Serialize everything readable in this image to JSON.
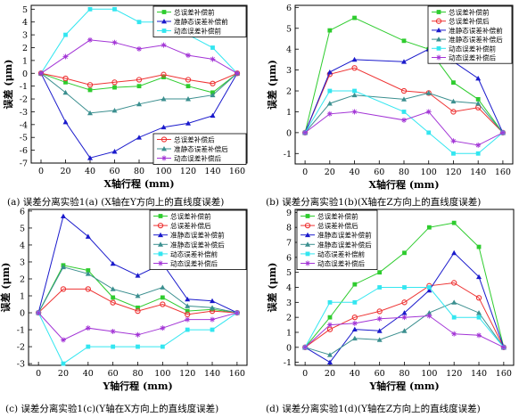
{
  "figure": {
    "captions": [
      "(a) 误差分离实验1(a) (X轴在Y方向上的直线度误差)",
      "(b) 误差分离实验1(b)(X轴在Z方向上的直线度误差)",
      "(c) 误差分离实验1(c)(Y轴在X方向上的直线度误差)",
      "(d) 误差分离实验1(d)(Y轴在Z方向上的直线度误差)"
    ]
  },
  "chart_data": [
    {
      "type": "line",
      "xlabel": "X轴行程 (mm)",
      "ylabel": "误差 (μm)",
      "xlim": [
        -8,
        168
      ],
      "ylim": [
        -7,
        5.3
      ],
      "xticks": [
        0,
        20,
        40,
        60,
        80,
        100,
        120,
        140,
        160
      ],
      "yticks": [
        -7,
        -6,
        -5,
        -4,
        -3,
        -2,
        -1,
        0,
        1,
        2,
        3,
        4,
        5
      ],
      "x": [
        0,
        20,
        40,
        60,
        80,
        100,
        120,
        140,
        160
      ],
      "series": [
        {
          "name": "总误差补偿前",
          "color": "#2ecc2e",
          "marker": "square",
          "values": [
            0,
            -0.7,
            -1.3,
            -1.1,
            -1.0,
            -0.3,
            -1.0,
            -1.5,
            0
          ]
        },
        {
          "name": "准静态误差补偿前",
          "color": "#1a1acc",
          "marker": "triangle",
          "values": [
            0,
            -3.8,
            -6.6,
            -6.1,
            -5.0,
            -4.2,
            -3.9,
            -3.3,
            0
          ]
        },
        {
          "name": "动态误差补偿前",
          "color": "#33e6f0",
          "marker": "square",
          "values": [
            0,
            3.0,
            5.0,
            5.0,
            4.0,
            4.0,
            3.0,
            2.0,
            0
          ]
        },
        {
          "name": "总误差补偿后",
          "color": "#ee3333",
          "marker": "circle",
          "values": [
            0,
            -0.4,
            -0.9,
            -0.7,
            -0.5,
            -0.1,
            -0.5,
            -0.8,
            0
          ]
        },
        {
          "name": "准静态误差补偿后",
          "color": "#3b8f8f",
          "marker": "triangle",
          "values": [
            0,
            -1.5,
            -3.1,
            -2.9,
            -2.4,
            -2.0,
            -2.0,
            -1.7,
            0
          ]
        },
        {
          "name": "动态误差补偿后",
          "color": "#a335d6",
          "marker": "star",
          "values": [
            0,
            1.3,
            2.6,
            2.4,
            1.9,
            2.2,
            1.4,
            1.1,
            0
          ]
        }
      ]
    },
    {
      "type": "line",
      "xlabel": "X轴行程 (mm)",
      "ylabel": "误差 (μm)",
      "xlim": [
        -8,
        168
      ],
      "ylim": [
        -1.5,
        6.1
      ],
      "xticks": [
        0,
        20,
        40,
        60,
        80,
        100,
        120,
        140,
        160
      ],
      "yticks": [
        -1,
        0,
        1,
        2,
        3,
        4,
        5,
        6
      ],
      "x": [
        0,
        20,
        40,
        80,
        100,
        120,
        140,
        160
      ],
      "series": [
        {
          "name": "总误差补偿前",
          "color": "#2ecc2e",
          "marker": "square",
          "values": [
            0,
            4.9,
            5.5,
            4.4,
            4.0,
            2.4,
            1.6,
            0
          ]
        },
        {
          "name": "总误差补偿后",
          "color": "#ee3333",
          "marker": "circle",
          "values": [
            0,
            2.8,
            3.1,
            2.0,
            1.9,
            1.0,
            1.2,
            0
          ]
        },
        {
          "name": "准静态误差补偿前",
          "color": "#1a1acc",
          "marker": "triangle",
          "values": [
            0,
            2.9,
            3.5,
            3.4,
            4.0,
            3.4,
            2.6,
            0
          ]
        },
        {
          "name": "准静态误差补偿后",
          "color": "#3b8f8f",
          "marker": "triangle",
          "values": [
            0,
            1.4,
            1.8,
            1.6,
            1.9,
            1.5,
            1.4,
            0
          ]
        },
        {
          "name": "动态误差补偿前",
          "color": "#33e6f0",
          "marker": "square",
          "values": [
            0,
            2.0,
            2.0,
            1.0,
            0,
            -1.0,
            -1.0,
            0
          ]
        },
        {
          "name": "动态误差补偿后",
          "color": "#a335d6",
          "marker": "star",
          "values": [
            0,
            0.9,
            1.0,
            0.6,
            1.0,
            -0.4,
            -0.6,
            0
          ]
        }
      ]
    },
    {
      "type": "line",
      "xlabel": "Y轴行程 (mm)",
      "ylabel": "误差 (μm)",
      "xlim": [
        -8,
        168
      ],
      "ylim": [
        -3.1,
        6.1
      ],
      "xticks": [
        0,
        20,
        40,
        60,
        80,
        100,
        120,
        140,
        160
      ],
      "yticks": [
        -3,
        -2,
        -1,
        0,
        1,
        2,
        3,
        4,
        5,
        6
      ],
      "x": [
        0,
        20,
        40,
        60,
        80,
        100,
        120,
        140,
        160
      ],
      "series": [
        {
          "name": "总误差补偿前",
          "color": "#2ecc2e",
          "marker": "square",
          "values": [
            0,
            2.8,
            2.5,
            0.9,
            0.3,
            0.9,
            0.1,
            0.2,
            0
          ]
        },
        {
          "name": "总误差补偿后",
          "color": "#ee3333",
          "marker": "circle",
          "values": [
            0,
            1.4,
            1.4,
            0.6,
            0.1,
            0.5,
            -0.1,
            0.1,
            0
          ]
        },
        {
          "name": "准静态误差补偿前",
          "color": "#1a1acc",
          "marker": "triangle",
          "values": [
            0,
            5.7,
            4.5,
            2.9,
            2.2,
            2.9,
            0.8,
            0.7,
            0
          ]
        },
        {
          "name": "准静态误差补偿后",
          "color": "#3b8f8f",
          "marker": "triangle",
          "values": [
            0,
            2.7,
            2.3,
            1.4,
            1.0,
            1.5,
            0.4,
            0.3,
            0
          ]
        },
        {
          "name": "动态误差补偿前",
          "color": "#33e6f0",
          "marker": "square",
          "values": [
            0,
            -3.0,
            -2.0,
            -2.0,
            -2.0,
            -2.0,
            -1.0,
            -1.0,
            0
          ]
        },
        {
          "name": "动态误差补偿后",
          "color": "#a335d6",
          "marker": "star",
          "values": [
            0,
            -1.6,
            -0.9,
            -1.1,
            -1.3,
            -0.9,
            -0.4,
            -0.4,
            0
          ]
        }
      ]
    },
    {
      "type": "line",
      "xlabel": "Y轴行程 (mm)",
      "ylabel": "误差 (μm)",
      "xlim": [
        -8,
        168
      ],
      "ylim": [
        -1.2,
        9.2
      ],
      "xticks": [
        0,
        20,
        40,
        60,
        80,
        100,
        120,
        140,
        160
      ],
      "yticks": [
        -1,
        0,
        1,
        2,
        3,
        4,
        5,
        6,
        7,
        8,
        9
      ],
      "x": [
        0,
        20,
        40,
        60,
        80,
        100,
        120,
        140,
        160
      ],
      "series": [
        {
          "name": "总误差补偿前",
          "color": "#2ecc2e",
          "marker": "square",
          "values": [
            0,
            2.0,
            4.2,
            5.0,
            6.3,
            8.0,
            8.3,
            6.7,
            0
          ]
        },
        {
          "name": "总误差补偿后",
          "color": "#ee3333",
          "marker": "circle",
          "values": [
            0,
            1.2,
            2.0,
            2.4,
            3.0,
            4.1,
            4.3,
            3.3,
            0
          ]
        },
        {
          "name": "准静态误差补偿前",
          "color": "#1a1acc",
          "marker": "triangle",
          "values": [
            0,
            -1.0,
            1.2,
            1.1,
            2.3,
            3.8,
            6.3,
            4.7,
            0
          ]
        },
        {
          "name": "准静态误差补偿后",
          "color": "#3b8f8f",
          "marker": "triangle",
          "values": [
            0,
            -0.5,
            0.6,
            0.5,
            1.1,
            2.3,
            3.0,
            2.3,
            0
          ]
        },
        {
          "name": "动态误差补偿前",
          "color": "#33e6f0",
          "marker": "square",
          "values": [
            0,
            3.0,
            3.0,
            4.0,
            4.0,
            4.0,
            2.0,
            2.0,
            0
          ]
        },
        {
          "name": "动态误差补偿后",
          "color": "#a335d6",
          "marker": "star",
          "values": [
            0,
            1.5,
            1.6,
            1.9,
            2.0,
            2.1,
            0.9,
            0.8,
            0
          ]
        }
      ]
    }
  ]
}
